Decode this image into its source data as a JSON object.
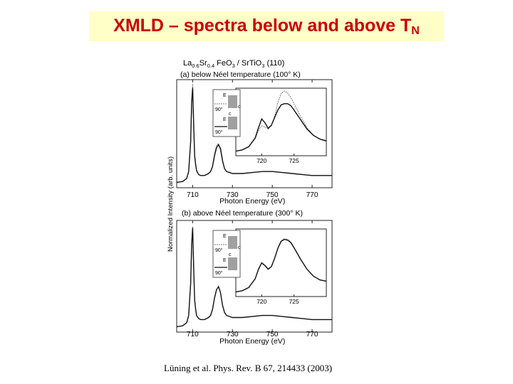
{
  "slide": {
    "title_main": "XMLD – spectra below and above T",
    "title_sub": "N",
    "citation": "Lüning et al. Phys. Rev. B 67, 214433 (2003)"
  },
  "figure": {
    "header_parts": [
      "La",
      "0.6",
      "Sr",
      "0.4",
      " FeO",
      "3",
      " / SrTiO",
      "3",
      " (110)"
    ],
    "y_label": "Normalized Intensity (arb. units)",
    "inset_labels": {
      "e_vec": "E",
      "c_axis": "c",
      "angle": "90°"
    }
  },
  "chart_data": [
    {
      "type": "line",
      "title": "(a) below Néel temperature (100° K)",
      "xlabel": "Photon Energy (eV)",
      "ylabel": "Normalized Intensity (arb. units)",
      "xlim": [
        702,
        780
      ],
      "xticks": [
        710,
        730,
        750,
        770
      ],
      "grid": false,
      "series": [
        {
          "style": "dotted",
          "x": [
            702,
            705,
            707,
            708,
            709,
            709.5,
            710,
            710.5,
            711,
            711.5,
            712,
            713,
            714,
            716,
            718,
            719,
            720,
            721,
            722,
            723,
            724,
            725,
            726,
            727,
            730,
            735,
            740,
            745,
            750,
            755,
            760,
            765,
            770,
            775,
            780
          ],
          "y": [
            0.01,
            0.02,
            0.05,
            0.12,
            0.4,
            0.8,
            1.0,
            0.55,
            0.25,
            0.18,
            0.12,
            0.09,
            0.08,
            0.08,
            0.1,
            0.12,
            0.18,
            0.3,
            0.38,
            0.4,
            0.33,
            0.22,
            0.15,
            0.12,
            0.1,
            0.1,
            0.11,
            0.12,
            0.12,
            0.11,
            0.1,
            0.09,
            0.08,
            0.08,
            0.08
          ]
        },
        {
          "style": "solid",
          "x": [
            702,
            705,
            707,
            708,
            709,
            709.5,
            710,
            710.5,
            711,
            711.5,
            712,
            713,
            714,
            716,
            718,
            719,
            720,
            721,
            722,
            723,
            724,
            725,
            726,
            727,
            730,
            735,
            740,
            745,
            750,
            755,
            760,
            765,
            770,
            775,
            780
          ],
          "y": [
            0.01,
            0.02,
            0.05,
            0.12,
            0.42,
            0.82,
            0.96,
            0.6,
            0.28,
            0.19,
            0.13,
            0.09,
            0.08,
            0.08,
            0.1,
            0.12,
            0.17,
            0.28,
            0.36,
            0.39,
            0.35,
            0.23,
            0.15,
            0.12,
            0.1,
            0.1,
            0.11,
            0.12,
            0.12,
            0.11,
            0.1,
            0.09,
            0.08,
            0.08,
            0.08
          ]
        }
      ],
      "inset": {
        "xlim": [
          716,
          730
        ],
        "xticks": [
          720,
          725
        ],
        "series": [
          {
            "style": "dotted",
            "x": [
              716,
              717,
              718,
              719,
              719.5,
              720,
              720.5,
              721,
              721.5,
              722,
              722.5,
              723,
              723.5,
              724,
              724.5,
              725,
              726,
              727,
              728,
              729,
              730
            ],
            "y": [
              0.05,
              0.07,
              0.12,
              0.25,
              0.38,
              0.45,
              0.43,
              0.4,
              0.45,
              0.6,
              0.82,
              0.96,
              1.0,
              0.97,
              0.9,
              0.8,
              0.6,
              0.42,
              0.3,
              0.24,
              0.22
            ]
          },
          {
            "style": "solid",
            "x": [
              716,
              717,
              718,
              719,
              719.5,
              720,
              720.5,
              721,
              721.5,
              722,
              722.5,
              723,
              723.5,
              724,
              724.5,
              725,
              726,
              727,
              728,
              729,
              730
            ],
            "y": [
              0.05,
              0.07,
              0.12,
              0.26,
              0.42,
              0.56,
              0.5,
              0.41,
              0.46,
              0.58,
              0.7,
              0.78,
              0.8,
              0.8,
              0.77,
              0.7,
              0.55,
              0.4,
              0.3,
              0.24,
              0.21
            ]
          }
        ]
      }
    },
    {
      "type": "line",
      "title": "(b) above Néel temperature (300° K)",
      "xlabel": "Photon Energy (eV)",
      "ylabel": "Normalized Intensity (arb. units)",
      "xlim": [
        702,
        780
      ],
      "xticks": [
        710,
        730,
        750,
        770
      ],
      "grid": false,
      "series": [
        {
          "style": "dotted",
          "x": [
            702,
            705,
            707,
            708,
            709,
            709.5,
            710,
            710.5,
            711,
            711.5,
            712,
            713,
            714,
            716,
            718,
            719,
            720,
            721,
            722,
            723,
            724,
            725,
            726,
            727,
            730,
            735,
            740,
            745,
            750,
            755,
            760,
            765,
            770,
            775,
            780
          ],
          "y": [
            0.01,
            0.02,
            0.05,
            0.12,
            0.42,
            0.8,
            0.98,
            0.58,
            0.26,
            0.18,
            0.12,
            0.09,
            0.08,
            0.08,
            0.1,
            0.12,
            0.18,
            0.29,
            0.37,
            0.4,
            0.34,
            0.22,
            0.15,
            0.12,
            0.1,
            0.1,
            0.11,
            0.12,
            0.12,
            0.11,
            0.1,
            0.09,
            0.08,
            0.08,
            0.08
          ]
        },
        {
          "style": "solid",
          "x": [
            702,
            705,
            707,
            708,
            709,
            709.5,
            710,
            710.5,
            711,
            711.5,
            712,
            713,
            714,
            716,
            718,
            719,
            720,
            721,
            722,
            723,
            724,
            725,
            726,
            727,
            730,
            735,
            740,
            745,
            750,
            755,
            760,
            765,
            770,
            775,
            780
          ],
          "y": [
            0.01,
            0.02,
            0.05,
            0.12,
            0.43,
            0.81,
            0.97,
            0.59,
            0.27,
            0.18,
            0.12,
            0.09,
            0.08,
            0.08,
            0.1,
            0.12,
            0.18,
            0.29,
            0.37,
            0.4,
            0.34,
            0.22,
            0.15,
            0.12,
            0.1,
            0.1,
            0.11,
            0.12,
            0.12,
            0.11,
            0.1,
            0.09,
            0.08,
            0.08,
            0.08
          ]
        }
      ],
      "inset": {
        "xlim": [
          716,
          730
        ],
        "xticks": [
          720,
          725
        ],
        "series": [
          {
            "style": "dotted",
            "x": [
              716,
              717,
              718,
              719,
              719.5,
              720,
              720.5,
              721,
              721.5,
              722,
              722.5,
              723,
              723.5,
              724,
              724.5,
              725,
              726,
              727,
              728,
              729,
              730
            ],
            "y": [
              0.05,
              0.07,
              0.12,
              0.26,
              0.4,
              0.5,
              0.46,
              0.4,
              0.45,
              0.58,
              0.75,
              0.86,
              0.89,
              0.88,
              0.84,
              0.76,
              0.58,
              0.41,
              0.3,
              0.24,
              0.22
            ]
          },
          {
            "style": "solid",
            "x": [
              716,
              717,
              718,
              719,
              719.5,
              720,
              720.5,
              721,
              721.5,
              722,
              722.5,
              723,
              723.5,
              724,
              724.5,
              725,
              726,
              727,
              728,
              729,
              730
            ],
            "y": [
              0.05,
              0.07,
              0.12,
              0.26,
              0.41,
              0.51,
              0.47,
              0.41,
              0.45,
              0.58,
              0.74,
              0.85,
              0.88,
              0.87,
              0.83,
              0.75,
              0.57,
              0.41,
              0.3,
              0.24,
              0.22
            ]
          }
        ]
      }
    }
  ]
}
